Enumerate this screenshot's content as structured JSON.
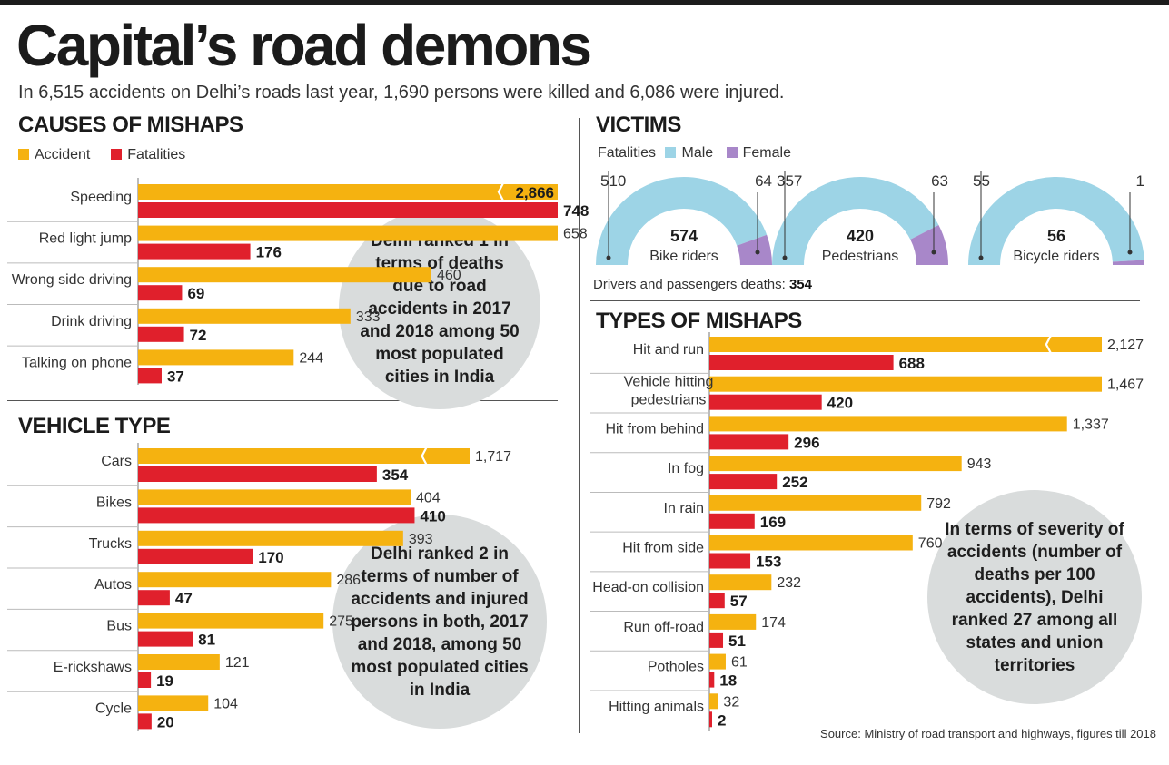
{
  "title": "Capital’s road demons",
  "subtitle": "In 6,515 accidents on Delhi’s roads last year, 1,690 persons were killed and 6,086 were injured.",
  "legend": {
    "accident": "Accident",
    "fatalities": "Fatalities"
  },
  "colors": {
    "accident": "#f5b210",
    "fatalities": "#e0202c",
    "male": "#9dd4e6",
    "female": "#a887c9",
    "bubble": "#d9dcdc"
  },
  "bubbles": {
    "causes": "Delhi ranked 1 in terms of deaths due to road accidents in 2017 and 2018 among 50 most populated cities in India",
    "vehicle": "Delhi ranked 2 in terms of number of accidents and injured persons in both, 2017 and 2018, among 50 most populated cities in India",
    "types": "In terms of severity of accidents (number of deaths per 100 accidents), Delhi ranked 27 among all states and union territories"
  },
  "victims_note": {
    "label": "Drivers and passengers deaths:",
    "value": "354"
  },
  "source": "Source: Ministry of road transport and highways, figures till 2018",
  "chart_data": [
    {
      "type": "bar",
      "title": "CAUSES OF MISHAPS",
      "categories": [
        "Speeding",
        "Red light jump",
        "Wrong side driving",
        "Drink driving",
        "Talking on phone"
      ],
      "series": [
        {
          "name": "Accident",
          "values": [
            2866,
            658,
            460,
            333,
            244
          ],
          "labels": [
            "2,866",
            "658",
            "460",
            "333",
            "244"
          ]
        },
        {
          "name": "Fatalities",
          "values": [
            748,
            176,
            69,
            72,
            37
          ],
          "labels": [
            "748",
            "176",
            "69",
            "72",
            "37"
          ]
        }
      ],
      "broken_axis": [
        "Speeding"
      ]
    },
    {
      "type": "bar",
      "title": "VEHICLE TYPE",
      "categories": [
        "Cars",
        "Bikes",
        "Trucks",
        "Autos",
        "Bus",
        "E-rickshaws",
        "Cycle"
      ],
      "series": [
        {
          "name": "Accident",
          "values": [
            1717,
            404,
            393,
            286,
            275,
            121,
            104
          ],
          "labels": [
            "1,717",
            "404",
            "393",
            "286",
            "275",
            "121",
            "104"
          ]
        },
        {
          "name": "Fatalities",
          "values": [
            354,
            410,
            170,
            47,
            81,
            19,
            20
          ],
          "labels": [
            "354",
            "410",
            "170",
            "47",
            "81",
            "19",
            "20"
          ]
        }
      ],
      "broken_axis": [
        "Cars"
      ]
    },
    {
      "type": "pie",
      "title": "VICTIMS",
      "legend": [
        "Fatalities",
        "Male",
        "Female"
      ],
      "groups": [
        {
          "name": "Bike riders",
          "total": 574,
          "male": 510,
          "female": 64
        },
        {
          "name": "Pedestrians",
          "total": 420,
          "male": 357,
          "female": 63
        },
        {
          "name": "Bicycle riders",
          "total": 56,
          "male": 55,
          "female": 1
        }
      ]
    },
    {
      "type": "bar",
      "title": "TYPES OF MISHAPS",
      "categories": [
        "Hit and run",
        "Vehicle hitting pedestrians",
        "Hit from behind",
        "In fog",
        "In rain",
        "Hit from side",
        "Head-on collision",
        "Run off-road",
        "Potholes",
        "Hitting animals"
      ],
      "series": [
        {
          "name": "Accident",
          "values": [
            2127,
            1467,
            1337,
            943,
            792,
            760,
            232,
            174,
            61,
            32
          ],
          "labels": [
            "2,127",
            "1,467",
            "1,337",
            "943",
            "792",
            "760",
            "232",
            "174",
            "61",
            "32"
          ]
        },
        {
          "name": "Fatalities",
          "values": [
            688,
            420,
            296,
            252,
            169,
            153,
            57,
            51,
            18,
            2
          ],
          "labels": [
            "688",
            "420",
            "296",
            "252",
            "169",
            "153",
            "57",
            "51",
            "18",
            "2"
          ]
        }
      ],
      "broken_axis": [
        "Hit and run"
      ]
    }
  ]
}
